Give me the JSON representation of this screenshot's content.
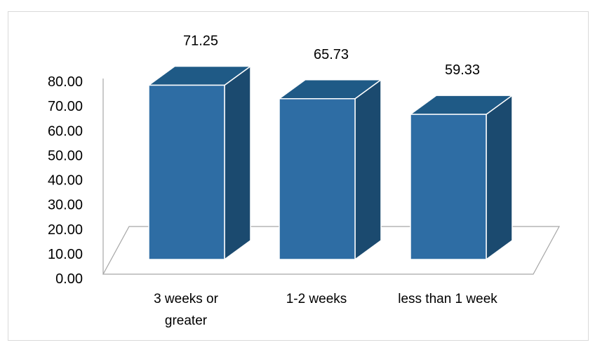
{
  "chart_data": {
    "type": "bar",
    "style": "3d-column",
    "title": "",
    "xlabel": "",
    "ylabel": "",
    "categories": [
      "3 weeks or greater",
      "1-2 weeks",
      "less than 1 week"
    ],
    "category_lines": [
      [
        "3 weeks or",
        "greater"
      ],
      [
        "1-2 weeks"
      ],
      [
        "less than 1 week"
      ]
    ],
    "values": [
      71.25,
      65.73,
      59.33
    ],
    "data_labels": [
      "71.25",
      "65.73",
      "59.33"
    ],
    "ylim": [
      0,
      80
    ],
    "y_ticks": [
      "0.00",
      "10.00",
      "20.00",
      "30.00",
      "40.00",
      "50.00",
      "60.00",
      "70.00",
      "80.00"
    ],
    "grid": false,
    "legend": "none",
    "colors": {
      "front": "#2e6da4",
      "side": "#1b4a6f",
      "top": "#1f5a86",
      "outline": "#ffffff",
      "axis": "#a6a6a6"
    }
  }
}
